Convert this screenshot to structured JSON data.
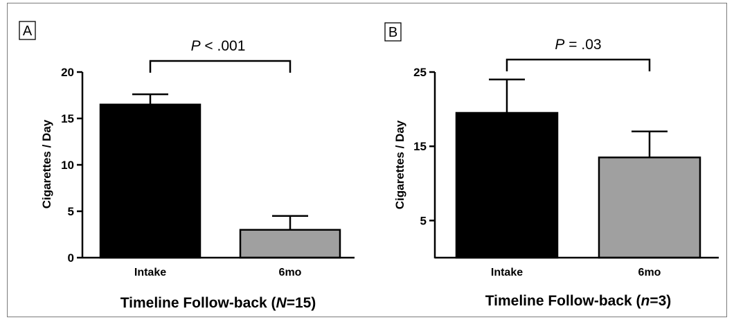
{
  "chart_data": [
    {
      "type": "bar",
      "panel_label": "A",
      "categories": [
        "Intake",
        "6mo"
      ],
      "values": [
        16.5,
        3.0
      ],
      "error_upper": [
        1.1,
        1.5
      ],
      "bar_colors": [
        "#000000",
        "#a0a0a0"
      ],
      "ylabel": "Cigarettes / Day",
      "xlabel_parts": [
        "Timeline Follow-back (",
        "N",
        "=15)"
      ],
      "yticks": [
        "0",
        "5",
        "10",
        "15",
        "20"
      ],
      "ytick_values": [
        0,
        5,
        10,
        15,
        20
      ],
      "ylim": [
        0,
        20
      ],
      "significance": {
        "italic": "P",
        "text": " < .001"
      }
    },
    {
      "type": "bar",
      "panel_label": "B",
      "categories": [
        "Intake",
        "6mo"
      ],
      "values": [
        19.5,
        13.5
      ],
      "error_upper": [
        4.5,
        3.5
      ],
      "bar_colors": [
        "#000000",
        "#a0a0a0"
      ],
      "ylabel": "Cigarettes / Day",
      "xlabel_parts": [
        "Timeline Follow-back (",
        "n",
        "=3)"
      ],
      "yticks": [
        "5",
        "15",
        "25"
      ],
      "ytick_values": [
        5,
        15,
        25
      ],
      "ylim": [
        0,
        25
      ],
      "significance": {
        "italic": "P",
        "text": " = .03"
      }
    }
  ]
}
